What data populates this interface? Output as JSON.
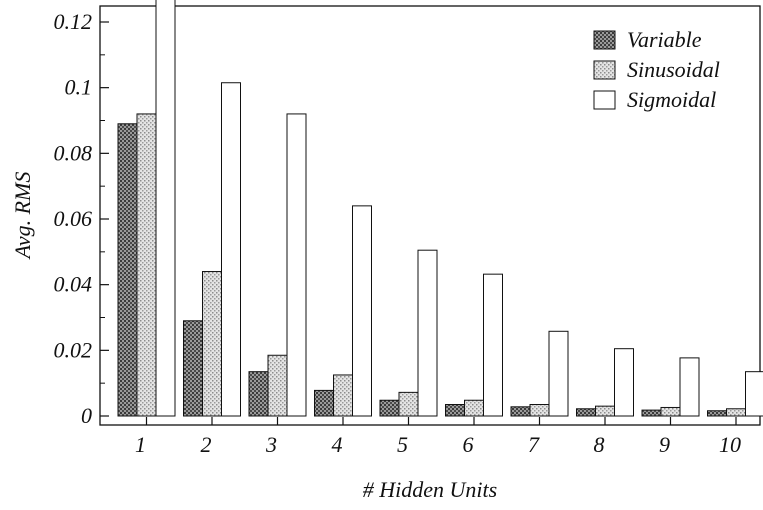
{
  "chart_data": {
    "type": "bar",
    "title": "",
    "xlabel": "# Hidden Units",
    "ylabel": "Avg. RMS",
    "categories": [
      "1",
      "2",
      "3",
      "4",
      "5",
      "6",
      "7",
      "8",
      "9",
      "10"
    ],
    "ylim": [
      0,
      0.135
    ],
    "yticks": [
      "0",
      "0.02",
      "0.04",
      "0.06",
      "0.08",
      "0.1",
      "0.12"
    ],
    "grid": false,
    "legend_position": "top-right",
    "series": [
      {
        "name": "Variable",
        "pattern": "dark-dense-dots",
        "values": [
          0.089,
          0.029,
          0.0135,
          0.0078,
          0.0048,
          0.0035,
          0.0028,
          0.0022,
          0.0018,
          0.0016
        ]
      },
      {
        "name": "Sinusoidal",
        "pattern": "light-dots",
        "values": [
          0.092,
          0.044,
          0.0185,
          0.0125,
          0.0072,
          0.0048,
          0.0035,
          0.003,
          0.0026,
          0.0022
        ]
      },
      {
        "name": "Sigmoidal",
        "pattern": "white",
        "values": [
          0.131,
          0.1015,
          0.092,
          0.064,
          0.0505,
          0.0432,
          0.0258,
          0.0205,
          0.0177,
          0.0135
        ]
      }
    ]
  }
}
